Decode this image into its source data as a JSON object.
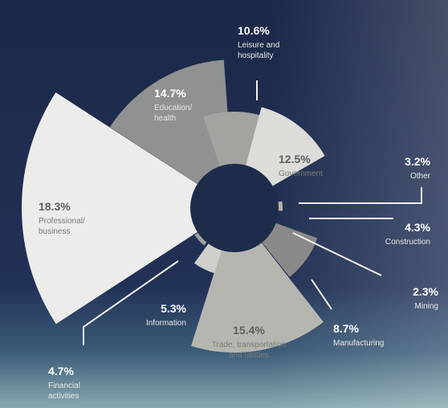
{
  "chart_data": {
    "type": "pie",
    "title": "",
    "series": [
      {
        "name": "",
        "values": [
          18.3,
          14.7,
          10.6,
          12.5,
          3.2,
          4.3,
          2.3,
          8.7,
          15.4,
          5.3,
          4.7
        ]
      }
    ],
    "slices": [
      {
        "pct": "18.3%",
        "label": [
          "Professional/",
          "business"
        ],
        "value": 18.3,
        "color": "#ececea"
      },
      {
        "pct": "14.7%",
        "label": [
          "Education/",
          "health"
        ],
        "value": 14.7,
        "color": "#8f9290"
      },
      {
        "pct": "10.6%",
        "label": [
          "Leisure and",
          "hospitality"
        ],
        "value": 10.6,
        "color": "#a3a4a0"
      },
      {
        "pct": "12.5%",
        "label": [
          "Government"
        ],
        "value": 12.5,
        "color": "#dcdcd8"
      },
      {
        "pct": "3.2%",
        "label": [
          "Other"
        ],
        "value": 3.2,
        "color": "#b0b1ad"
      },
      {
        "pct": "4.3%",
        "label": [
          "Construction"
        ],
        "value": 4.3,
        "color": "#4b4b45"
      },
      {
        "pct": "2.3%",
        "label": [
          "Mining"
        ],
        "value": 2.3,
        "color": "#6e6c62"
      },
      {
        "pct": "8.7%",
        "label": [
          "Manufacturing"
        ],
        "value": 8.7,
        "color": "#8a8b88"
      },
      {
        "pct": "15.4%",
        "label": [
          "Trade, transportation",
          "and utilities"
        ],
        "value": 15.4,
        "color": "#b6b6b1"
      },
      {
        "pct": "5.3%",
        "label": [
          "Information"
        ],
        "value": 5.3,
        "color": "#cfcfcb"
      },
      {
        "pct": "4.7%",
        "label": [
          "Financial",
          "activities"
        ],
        "value": 4.7,
        "color": "#9ea09c"
      }
    ],
    "legend": "none",
    "grid": false
  },
  "colors": {
    "background_top": "#1b2848",
    "background_bottom": "#6f98a8",
    "hole": "#1e2c4c",
    "label_on_dark": "#ffffff",
    "label_on_light": "#5e5f5c"
  }
}
